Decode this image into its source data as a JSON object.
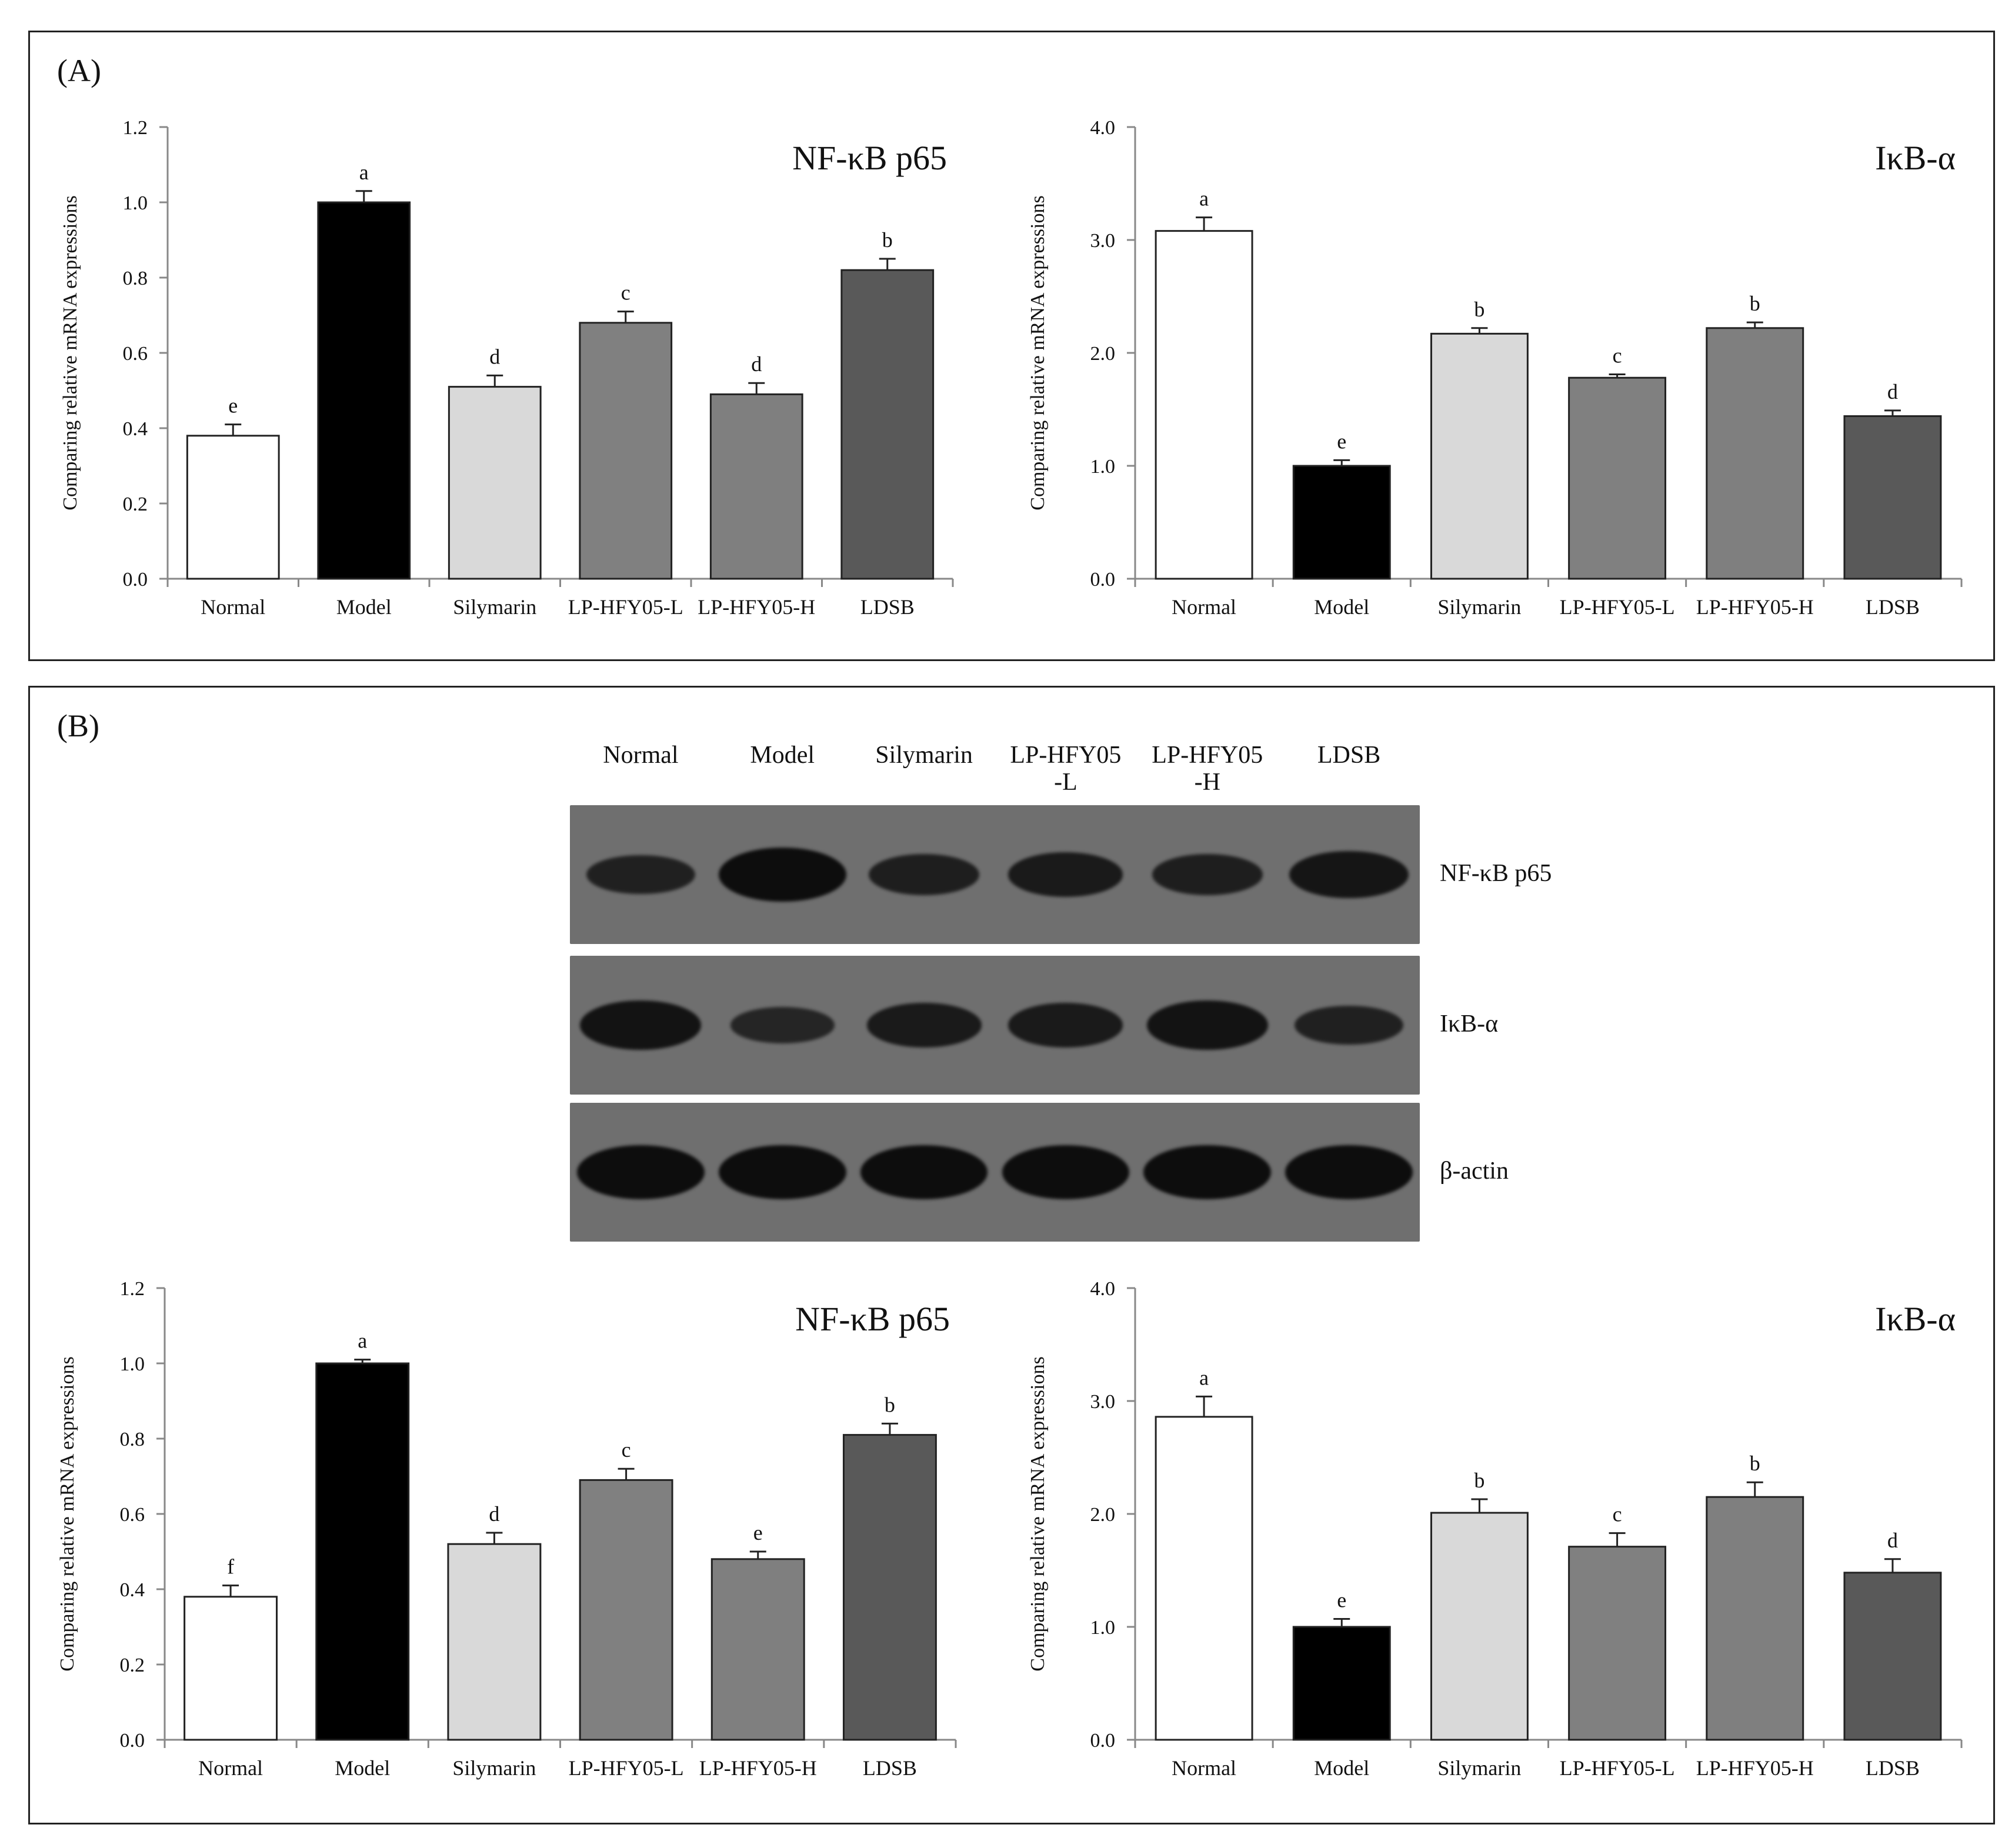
{
  "panelA": {
    "label": "(A)",
    "charts": [
      {
        "key": "a_nfkb",
        "title": "NF-κB p65",
        "ylabel": "Comparing relative mRNA expressions",
        "ylim": [
          0,
          1.2
        ],
        "ticks": [
          "0.0",
          "0.2",
          "0.4",
          "0.6",
          "0.8",
          "1.0",
          "1.2"
        ]
      },
      {
        "key": "a_ikb",
        "title": "IκB-α",
        "ylabel": "Comparing relative mRNA expressions",
        "ylim": [
          0,
          4.0
        ],
        "ticks": [
          "0.0",
          "1.0",
          "2.0",
          "3.0",
          "4.0"
        ]
      }
    ]
  },
  "panelB": {
    "label": "(B)",
    "blot": {
      "lanes": [
        "Normal",
        "Model",
        "Silymarin",
        "LP-HFY05\n-L",
        "LP-HFY05\n-H",
        "LDSB"
      ],
      "rows": [
        {
          "label": "NF-κB p65",
          "intensity": [
            0.55,
            1.0,
            0.6,
            0.7,
            0.6,
            0.8
          ]
        },
        {
          "label": "IκB-α",
          "intensity": [
            0.85,
            0.45,
            0.7,
            0.7,
            0.85,
            0.55
          ]
        },
        {
          "label": "β-actin",
          "intensity": [
            1,
            1,
            1,
            1,
            1,
            1
          ]
        }
      ]
    },
    "charts": [
      {
        "key": "b_nfkb",
        "title": "NF-κB p65",
        "ylabel": "Comparing relative mRNA expressions",
        "ylim": [
          0,
          1.2
        ],
        "ticks": [
          "0.0",
          "0.2",
          "0.4",
          "0.6",
          "0.8",
          "1.0",
          "1.2"
        ]
      },
      {
        "key": "b_ikb",
        "title": "IκB-α",
        "ylabel": "Comparing relative mRNA expressions",
        "ylim": [
          0,
          4.0
        ],
        "ticks": [
          "0.0",
          "1.0",
          "2.0",
          "3.0",
          "4.0"
        ]
      }
    ]
  },
  "colors": [
    "#ffffff",
    "#000000",
    "#d9d9d9",
    "#808080",
    "#7f7f7f",
    "#595959"
  ],
  "chart_data": [
    {
      "type": "bar",
      "title": "NF-κB p65",
      "ylabel": "Comparing relative mRNA expressions",
      "xlabel": "",
      "categories": [
        "Normal",
        "Model",
        "Silymarin",
        "LP-HFY05-L",
        "LP-HFY05-H",
        "LDSB"
      ],
      "values": [
        0.38,
        1.0,
        0.51,
        0.68,
        0.49,
        0.82
      ],
      "errors": [
        0.03,
        0.03,
        0.03,
        0.03,
        0.03,
        0.03
      ],
      "letters": [
        "e",
        "a",
        "d",
        "c",
        "d",
        "b"
      ],
      "ylim": [
        0,
        1.2
      ]
    },
    {
      "type": "bar",
      "title": "IκB-α",
      "ylabel": "Comparing relative mRNA expressions",
      "xlabel": "",
      "categories": [
        "Normal",
        "Model",
        "Silymarin",
        "LP-HFY05-L",
        "LP-HFY05-H",
        "LDSB"
      ],
      "values": [
        3.08,
        1.0,
        2.17,
        1.78,
        2.22,
        1.44
      ],
      "errors": [
        0.12,
        0.05,
        0.05,
        0.03,
        0.05,
        0.05
      ],
      "letters": [
        "a",
        "e",
        "b",
        "c",
        "b",
        "d"
      ],
      "ylim": [
        0,
        4.0
      ]
    },
    {
      "type": "bar",
      "title": "NF-κB p65",
      "ylabel": "Comparing relative mRNA expressions",
      "xlabel": "",
      "categories": [
        "Normal",
        "Model",
        "Silymarin",
        "LP-HFY05-L",
        "LP-HFY05-H",
        "LDSB"
      ],
      "values": [
        0.38,
        1.0,
        0.52,
        0.69,
        0.48,
        0.81
      ],
      "errors": [
        0.03,
        0.01,
        0.03,
        0.03,
        0.02,
        0.03
      ],
      "letters": [
        "f",
        "a",
        "d",
        "c",
        "e",
        "b"
      ],
      "ylim": [
        0,
        1.2
      ]
    },
    {
      "type": "bar",
      "title": "IκB-α",
      "ylabel": "Comparing relative mRNA expressions",
      "xlabel": "",
      "categories": [
        "Normal",
        "Model",
        "Silymarin",
        "LP-HFY05-L",
        "LP-HFY05-H",
        "LDSB"
      ],
      "values": [
        2.86,
        1.0,
        2.01,
        1.71,
        2.15,
        1.48
      ],
      "errors": [
        0.18,
        0.07,
        0.12,
        0.12,
        0.13,
        0.12
      ],
      "letters": [
        "a",
        "e",
        "b",
        "c",
        "b",
        "d"
      ],
      "ylim": [
        0,
        4.0
      ]
    }
  ]
}
